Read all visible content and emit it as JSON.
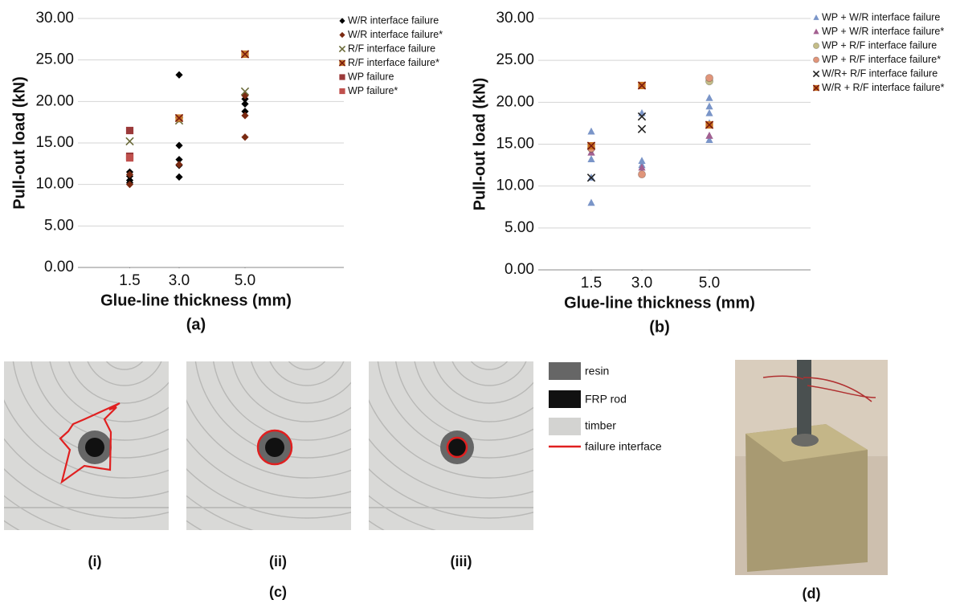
{
  "chart_data": [
    {
      "type": "scatter",
      "panel_label": "(a)",
      "x_label": "Glue-line thickness (mm)",
      "y_label": "Pull-out load (kN)",
      "xlim": [
        0,
        8
      ],
      "xticks": [
        1.5,
        {
          "value": 3,
          "label": "3.0"
        },
        {
          "value": 5,
          "label": "5.0"
        }
      ],
      "ylim": [
        0,
        30
      ],
      "yticks": [
        {
          "value": 0,
          "label": "0.00"
        },
        {
          "value": 5,
          "label": "5.00"
        },
        {
          "value": 10,
          "label": "10.00"
        },
        {
          "value": 15,
          "label": "15.00"
        },
        {
          "value": 20,
          "label": "20.00"
        },
        {
          "value": 25,
          "label": "25.00"
        },
        {
          "value": 30,
          "label": "30.00"
        }
      ],
      "grid": true,
      "legend": "right",
      "series": [
        {
          "name": "W/R interface failure",
          "color": "#000000",
          "marker": "diamond",
          "x": [
            1.5,
            1.5,
            1.5,
            1.5,
            3,
            3,
            3,
            3,
            3,
            5,
            5,
            5
          ],
          "values": [
            11.5,
            11.0,
            10.5,
            10.2,
            23.2,
            14.7,
            13.0,
            12.3,
            10.9,
            20.3,
            19.7,
            18.8
          ]
        },
        {
          "name": "W/R interface failure*",
          "color": "#7a2a12",
          "marker": "diamond",
          "x": [
            1.5,
            1.5,
            3,
            3,
            5,
            5,
            5
          ],
          "values": [
            11.2,
            10.0,
            12.4,
            17.9,
            18.3,
            15.7,
            20.7
          ]
        },
        {
          "name": "R/F interface failure",
          "color": "#6b6b3a",
          "marker": "x",
          "x": [
            1.5,
            3,
            5
          ],
          "values": [
            15.2,
            17.7,
            21.2
          ]
        },
        {
          "name": "R/F interface failure*",
          "color": "#c87a2c",
          "marker": "square-x",
          "x": [
            3,
            5
          ],
          "values": [
            18.0,
            25.7
          ]
        },
        {
          "name": "WP failure",
          "color": "#9b3a3a",
          "marker": "square",
          "x": [
            1.5,
            1.5
          ],
          "values": [
            16.5,
            13.4
          ]
        },
        {
          "name": "WP failure*",
          "color": "#c0504d",
          "marker": "square",
          "x": [
            1.5
          ],
          "values": [
            13.2
          ]
        }
      ]
    },
    {
      "type": "scatter",
      "panel_label": "(b)",
      "x_label": "Glue-line thickness (mm)",
      "y_label": "Pull-out load (kN)",
      "xlim": [
        0,
        8
      ],
      "xticks": [
        1.5,
        {
          "value": 3,
          "label": "3.0"
        },
        {
          "value": 5,
          "label": "5.0"
        }
      ],
      "ylim": [
        0,
        30
      ],
      "yticks": [
        {
          "value": 0,
          "label": "0.00"
        },
        {
          "value": 5,
          "label": "5.00"
        },
        {
          "value": 10,
          "label": "10.00"
        },
        {
          "value": 15,
          "label": "15.00"
        },
        {
          "value": 20,
          "label": "20.00"
        },
        {
          "value": 25,
          "label": "25.00"
        },
        {
          "value": 30,
          "label": "30.00"
        }
      ],
      "grid": true,
      "legend": "right",
      "series": [
        {
          "name": "WP + W/R interface failure",
          "color": "#7a95c8",
          "marker": "triangle",
          "x": [
            1.5,
            1.5,
            1.5,
            1.5,
            1.5,
            3,
            3,
            3,
            5,
            5,
            5,
            5,
            5,
            5
          ],
          "values": [
            16.5,
            14.0,
            13.2,
            11.0,
            8.0,
            18.7,
            13.0,
            12.5,
            20.5,
            19.5,
            18.7,
            17.5,
            16.0,
            15.5
          ]
        },
        {
          "name": "WP + W/R interface failure*",
          "color": "#a36090",
          "marker": "triangle",
          "x": [
            1.5,
            3,
            5
          ],
          "values": [
            14.0,
            12.2,
            16.0
          ]
        },
        {
          "name": "WP + R/F interface failure",
          "color": "#c4bd88",
          "marker": "circle",
          "x": [
            1.5,
            5
          ],
          "values": [
            14.5,
            22.5
          ]
        },
        {
          "name": "WP + R/F interface failure*",
          "color": "#e0957a",
          "marker": "circle",
          "x": [
            1.5,
            3,
            5
          ],
          "values": [
            14.5,
            11.4,
            22.9
          ]
        },
        {
          "name": "W/R+ R/F interface failure",
          "color": "#222222",
          "marker": "x",
          "x": [
            1.5,
            3,
            3
          ],
          "values": [
            11.0,
            18.3,
            16.8
          ]
        },
        {
          "name": "W/R + R/F interface failure*",
          "color": "#c8701e",
          "marker": "square-x",
          "x": [
            1.5,
            3,
            5
          ],
          "values": [
            14.8,
            22.0,
            17.3
          ]
        }
      ]
    }
  ],
  "panel_c": {
    "label": "(c)",
    "sub_labels": [
      "(i)",
      "(ii)",
      "(iii)"
    ],
    "legend": [
      "resin",
      "FRP rod",
      "timber",
      "failure interface"
    ]
  },
  "panel_d": {
    "label": "(d)"
  }
}
